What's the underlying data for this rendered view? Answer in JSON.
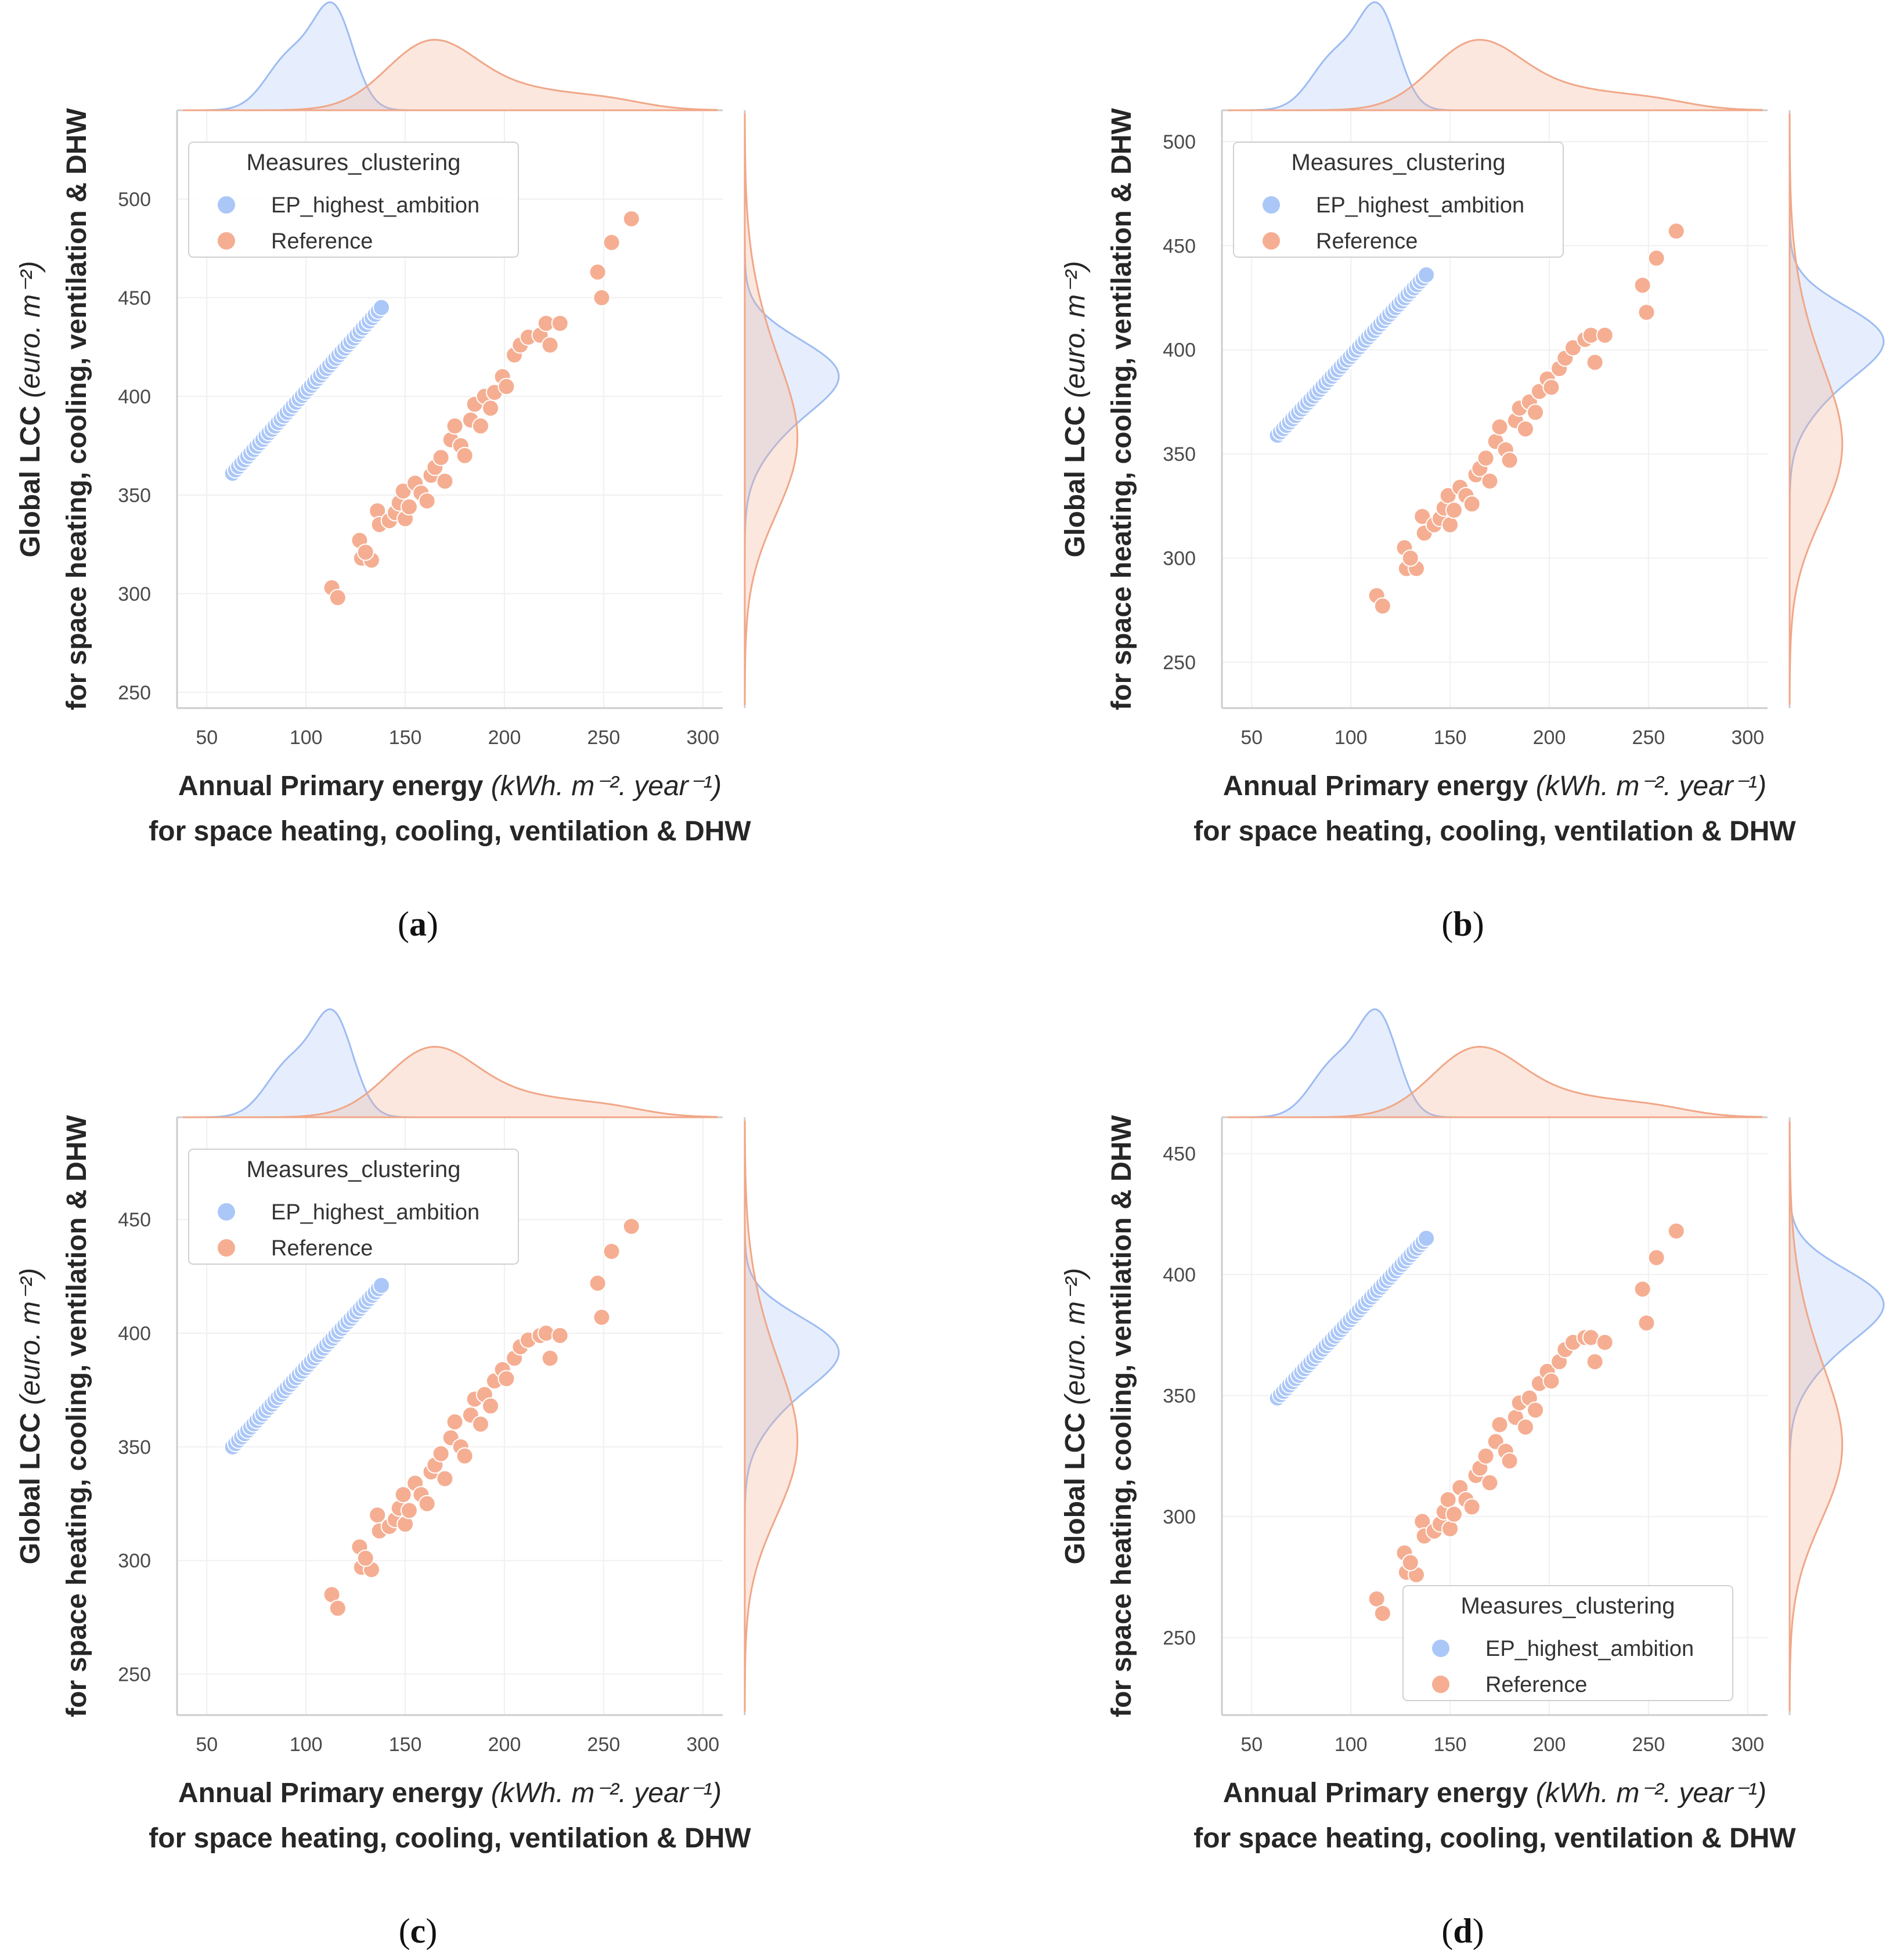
{
  "figure": {
    "legend_title": "Measures_clustering",
    "series_names": [
      "EP_highest_ambition",
      "Reference"
    ],
    "colors": {
      "EP_highest_ambition": "#abc7f8",
      "Reference": "#f5ae92",
      "kde_blue_line": "#9ebcf2",
      "kde_orange_line": "#f0a788",
      "axis": "#cccccc",
      "grid": "#f0f0f0"
    },
    "x_label": {
      "main": "Annual Primary energy",
      "units": "(kWh. m⁻². year⁻¹)",
      "line2": "for space heating, cooling, ventilation & DHW"
    },
    "y_label": {
      "main": "Global LCC",
      "units": "(euro. m⁻²)",
      "line2": "for space heating, cooling, ventilation & DHW"
    }
  },
  "chart_data": [
    {
      "type": "scatter",
      "panel": "a",
      "xlim": [
        35,
        310
      ],
      "ylim": [
        242,
        545
      ],
      "x_ticks": [
        50,
        100,
        150,
        200,
        250,
        300
      ],
      "y_ticks": [
        250,
        300,
        350,
        400,
        450,
        500
      ],
      "legend_position": "upper-left",
      "series": [
        {
          "name": "EP_highest_ambition",
          "fit": [
            63,
            361,
            138,
            445
          ],
          "n_points": 50
        },
        {
          "name": "Reference",
          "points": [
            [
              113,
              303
            ],
            [
              116,
              298
            ],
            [
              127,
              327
            ],
            [
              128,
              318
            ],
            [
              133,
              317
            ],
            [
              130,
              321
            ],
            [
              136,
              342
            ],
            [
              137,
              335
            ],
            [
              142,
              337
            ],
            [
              145,
              341
            ],
            [
              147,
              346
            ],
            [
              149,
              352
            ],
            [
              150,
              338
            ],
            [
              152,
              344
            ],
            [
              155,
              356
            ],
            [
              158,
              351
            ],
            [
              161,
              347
            ],
            [
              163,
              360
            ],
            [
              165,
              364
            ],
            [
              168,
              369
            ],
            [
              170,
              357
            ],
            [
              173,
              378
            ],
            [
              175,
              385
            ],
            [
              178,
              375
            ],
            [
              180,
              370
            ],
            [
              183,
              388
            ],
            [
              185,
              396
            ],
            [
              188,
              385
            ],
            [
              190,
              400
            ],
            [
              193,
              394
            ],
            [
              195,
              402
            ],
            [
              199,
              410
            ],
            [
              201,
              405
            ],
            [
              205,
              421
            ],
            [
              208,
              426
            ],
            [
              212,
              430
            ],
            [
              218,
              431
            ],
            [
              221,
              437
            ],
            [
              223,
              426
            ],
            [
              228,
              437
            ],
            [
              247,
              463
            ],
            [
              249,
              450
            ],
            [
              254,
              478
            ],
            [
              264,
              490
            ]
          ]
        }
      ]
    },
    {
      "type": "scatter",
      "panel": "b",
      "xlim": [
        35,
        310
      ],
      "ylim": [
        228,
        515
      ],
      "x_ticks": [
        50,
        100,
        150,
        200,
        250,
        300
      ],
      "y_ticks": [
        250,
        300,
        350,
        400,
        450,
        500
      ],
      "legend_position": "upper-left",
      "series": [
        {
          "name": "EP_highest_ambition",
          "fit": [
            63,
            359,
            138,
            436
          ],
          "n_points": 50
        },
        {
          "name": "Reference",
          "points": [
            [
              113,
              282
            ],
            [
              116,
              277
            ],
            [
              127,
              305
            ],
            [
              128,
              295
            ],
            [
              133,
              295
            ],
            [
              130,
              300
            ],
            [
              136,
              320
            ],
            [
              137,
              312
            ],
            [
              142,
              316
            ],
            [
              145,
              319
            ],
            [
              147,
              324
            ],
            [
              149,
              330
            ],
            [
              150,
              316
            ],
            [
              152,
              323
            ],
            [
              155,
              334
            ],
            [
              158,
              330
            ],
            [
              161,
              326
            ],
            [
              163,
              340
            ],
            [
              165,
              343
            ],
            [
              168,
              348
            ],
            [
              170,
              337
            ],
            [
              173,
              356
            ],
            [
              175,
              363
            ],
            [
              178,
              352
            ],
            [
              180,
              347
            ],
            [
              183,
              366
            ],
            [
              185,
              372
            ],
            [
              188,
              362
            ],
            [
              190,
              375
            ],
            [
              193,
              370
            ],
            [
              195,
              380
            ],
            [
              199,
              386
            ],
            [
              201,
              382
            ],
            [
              205,
              391
            ],
            [
              208,
              396
            ],
            [
              212,
              401
            ],
            [
              218,
              405
            ],
            [
              221,
              407
            ],
            [
              223,
              394
            ],
            [
              228,
              407
            ],
            [
              247,
              431
            ],
            [
              249,
              418
            ],
            [
              254,
              444
            ],
            [
              264,
              457
            ]
          ]
        }
      ]
    },
    {
      "type": "scatter",
      "panel": "c",
      "xlim": [
        35,
        310
      ],
      "ylim": [
        232,
        495
      ],
      "x_ticks": [
        50,
        100,
        150,
        200,
        250,
        300
      ],
      "y_ticks": [
        250,
        300,
        350,
        400,
        450
      ],
      "legend_position": "upper-left",
      "series": [
        {
          "name": "EP_highest_ambition",
          "fit": [
            63,
            350,
            138,
            421
          ],
          "n_points": 50
        },
        {
          "name": "Reference",
          "points": [
            [
              113,
              285
            ],
            [
              116,
              279
            ],
            [
              127,
              306
            ],
            [
              128,
              297
            ],
            [
              133,
              296
            ],
            [
              130,
              301
            ],
            [
              136,
              320
            ],
            [
              137,
              313
            ],
            [
              142,
              315
            ],
            [
              145,
              318
            ],
            [
              147,
              323
            ],
            [
              149,
              329
            ],
            [
              150,
              316
            ],
            [
              152,
              322
            ],
            [
              155,
              334
            ],
            [
              158,
              329
            ],
            [
              161,
              325
            ],
            [
              163,
              339
            ],
            [
              165,
              342
            ],
            [
              168,
              347
            ],
            [
              170,
              336
            ],
            [
              173,
              354
            ],
            [
              175,
              361
            ],
            [
              178,
              350
            ],
            [
              180,
              346
            ],
            [
              183,
              364
            ],
            [
              185,
              371
            ],
            [
              188,
              360
            ],
            [
              190,
              373
            ],
            [
              193,
              368
            ],
            [
              195,
              379
            ],
            [
              199,
              384
            ],
            [
              201,
              380
            ],
            [
              205,
              389
            ],
            [
              208,
              394
            ],
            [
              212,
              397
            ],
            [
              218,
              399
            ],
            [
              221,
              400
            ],
            [
              223,
              389
            ],
            [
              228,
              399
            ],
            [
              247,
              422
            ],
            [
              249,
              407
            ],
            [
              254,
              436
            ],
            [
              264,
              447
            ]
          ]
        }
      ]
    },
    {
      "type": "scatter",
      "panel": "d",
      "xlim": [
        35,
        310
      ],
      "ylim": [
        218,
        465
      ],
      "x_ticks": [
        50,
        100,
        150,
        200,
        250,
        300
      ],
      "y_ticks": [
        250,
        300,
        350,
        400,
        450
      ],
      "legend_position": "lower-right",
      "series": [
        {
          "name": "EP_highest_ambition",
          "fit": [
            63,
            349,
            138,
            415
          ],
          "n_points": 50
        },
        {
          "name": "Reference",
          "points": [
            [
              113,
              266
            ],
            [
              116,
              260
            ],
            [
              127,
              285
            ],
            [
              128,
              277
            ],
            [
              133,
              276
            ],
            [
              130,
              281
            ],
            [
              136,
              298
            ],
            [
              137,
              292
            ],
            [
              142,
              294
            ],
            [
              145,
              297
            ],
            [
              147,
              302
            ],
            [
              149,
              307
            ],
            [
              150,
              295
            ],
            [
              152,
              301
            ],
            [
              155,
              312
            ],
            [
              158,
              307
            ],
            [
              161,
              304
            ],
            [
              163,
              317
            ],
            [
              165,
              320
            ],
            [
              168,
              325
            ],
            [
              170,
              314
            ],
            [
              173,
              331
            ],
            [
              175,
              338
            ],
            [
              178,
              327
            ],
            [
              180,
              323
            ],
            [
              183,
              341
            ],
            [
              185,
              347
            ],
            [
              188,
              337
            ],
            [
              190,
              349
            ],
            [
              193,
              344
            ],
            [
              195,
              355
            ],
            [
              199,
              360
            ],
            [
              201,
              356
            ],
            [
              205,
              364
            ],
            [
              208,
              369
            ],
            [
              212,
              372
            ],
            [
              218,
              374
            ],
            [
              221,
              374
            ],
            [
              223,
              364
            ],
            [
              228,
              372
            ],
            [
              247,
              394
            ],
            [
              249,
              380
            ],
            [
              254,
              407
            ],
            [
              264,
              418
            ]
          ]
        }
      ]
    }
  ],
  "panel_labels": [
    "a",
    "b",
    "c",
    "d"
  ]
}
